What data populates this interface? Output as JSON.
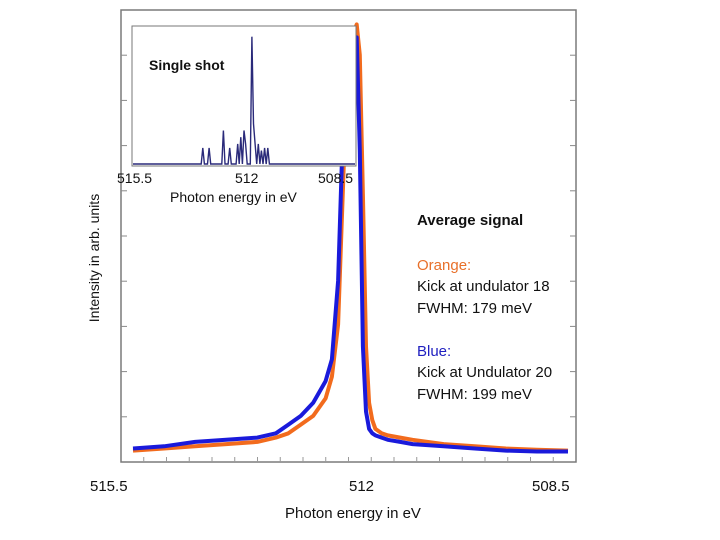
{
  "chart_data": [
    {
      "type": "line",
      "role": "main",
      "xlabel": "Photon energy in eV",
      "ylabel": "Intensity in arb. units",
      "x_ticks": [
        "515.5",
        "512",
        "508.5"
      ],
      "xlim": [
        515.5,
        508.5
      ],
      "x_reversed": true,
      "ylim": [
        0,
        1.0
      ],
      "grid": false,
      "series": [
        {
          "name": "Orange",
          "color": "#f26b1d",
          "x": [
            515.5,
            515.0,
            514.5,
            514.0,
            513.5,
            513.2,
            513.0,
            512.8,
            512.6,
            512.4,
            512.3,
            512.2,
            512.1,
            512.0,
            511.95,
            511.9,
            511.85,
            511.8,
            511.75,
            511.7,
            511.65,
            511.6,
            511.5,
            511.4,
            511.2,
            511.0,
            510.5,
            510.0,
            509.5,
            509.0,
            508.5
          ],
          "y": [
            0.01,
            0.015,
            0.02,
            0.025,
            0.03,
            0.04,
            0.05,
            0.07,
            0.09,
            0.13,
            0.18,
            0.3,
            0.7,
            0.9,
            0.97,
            0.99,
            0.92,
            0.6,
            0.25,
            0.12,
            0.08,
            0.06,
            0.05,
            0.045,
            0.04,
            0.035,
            0.025,
            0.02,
            0.015,
            0.012,
            0.01
          ]
        },
        {
          "name": "Blue",
          "color": "#1a1adb",
          "x": [
            515.5,
            515.0,
            514.5,
            514.0,
            513.5,
            513.2,
            513.0,
            512.8,
            512.6,
            512.4,
            512.3,
            512.2,
            512.1,
            512.05,
            512.0,
            511.95,
            511.9,
            511.85,
            511.8,
            511.75,
            511.7,
            511.65,
            511.6,
            511.5,
            511.4,
            511.2,
            511.0,
            510.5,
            510.0,
            509.5,
            509.0,
            508.5
          ],
          "y": [
            0.015,
            0.02,
            0.03,
            0.035,
            0.04,
            0.05,
            0.07,
            0.09,
            0.12,
            0.17,
            0.22,
            0.4,
            0.85,
            0.88,
            0.82,
            0.9,
            0.96,
            0.7,
            0.25,
            0.1,
            0.06,
            0.05,
            0.045,
            0.04,
            0.035,
            0.03,
            0.025,
            0.02,
            0.015,
            0.01,
            0.008,
            0.008
          ]
        }
      ]
    },
    {
      "type": "line",
      "role": "inset",
      "title": "Single shot",
      "xlabel": "Photon energy in eV",
      "x_ticks": [
        "515.5",
        "512",
        "508.5"
      ],
      "xlim": [
        515.5,
        508.5
      ],
      "x_reversed": true,
      "ylim": [
        0,
        1.0
      ],
      "series": [
        {
          "color": "#2a2a7a",
          "x": [
            515.5,
            513.35,
            513.3,
            513.25,
            513.15,
            513.1,
            513.05,
            512.7,
            512.65,
            512.6,
            512.5,
            512.45,
            512.4,
            512.25,
            512.2,
            512.15,
            512.1,
            512.05,
            512.0,
            511.95,
            511.9,
            511.8,
            511.75,
            511.7,
            511.6,
            511.55,
            511.5,
            511.45,
            511.4,
            511.35,
            511.3,
            511.25,
            511.2,
            511.0,
            508.5
          ],
          "y": [
            0.0,
            0.0,
            0.12,
            0.0,
            0.0,
            0.12,
            0.0,
            0.0,
            0.25,
            0.0,
            0.0,
            0.12,
            0.0,
            0.0,
            0.15,
            0.0,
            0.2,
            0.0,
            0.25,
            0.15,
            0.0,
            0.0,
            0.95,
            0.3,
            0.0,
            0.15,
            0.0,
            0.1,
            0.0,
            0.12,
            0.0,
            0.12,
            0.0,
            0.0,
            0.0
          ]
        }
      ]
    }
  ],
  "legend": {
    "heading": "Average signal",
    "orange_label": "Orange:",
    "orange_line1": "Kick at undulator 18",
    "orange_line2": "FWHM: 179 meV",
    "blue_label": "Blue:",
    "blue_line1": "Kick at Undulator 20",
    "blue_line2": "FWHM: 199 meV"
  }
}
